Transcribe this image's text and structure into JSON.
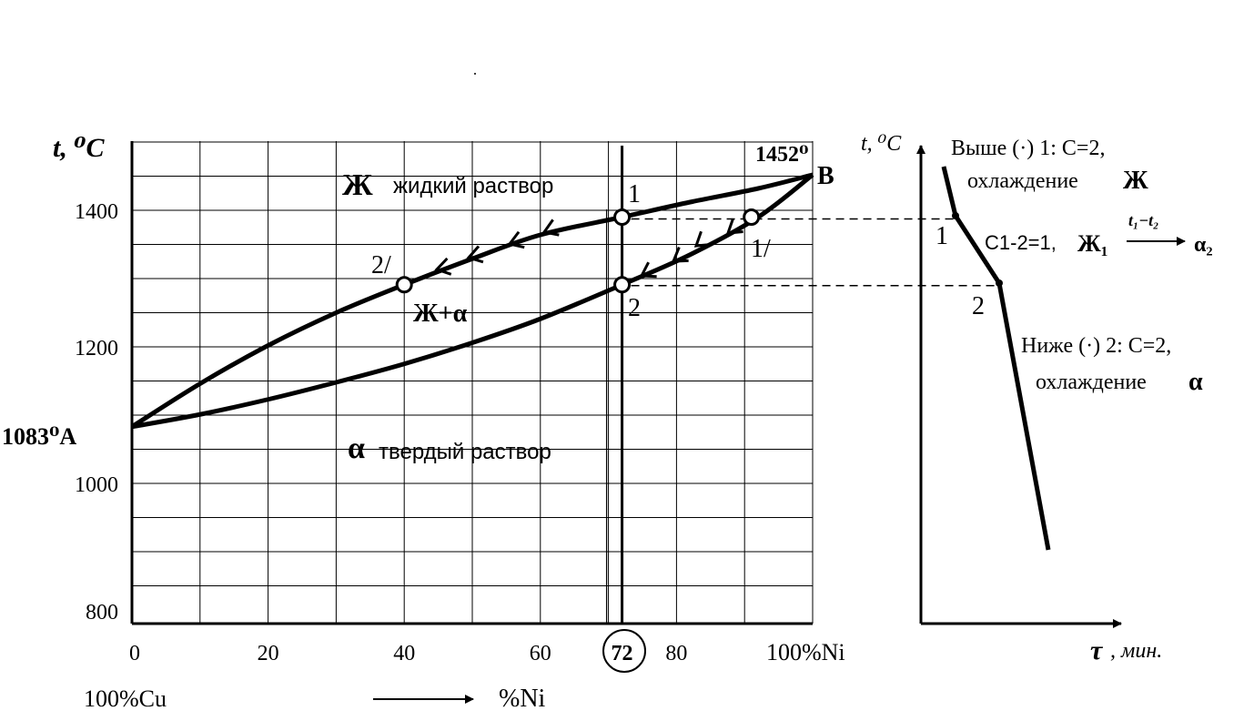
{
  "chart_data": [
    {
      "type": "line",
      "xlabel_left": "100%Cu",
      "xlabel_right": "100%Ni",
      "xlabel_axis": "%Ni",
      "ylabel": "t, ⁰C",
      "xlim": [
        0,
        100
      ],
      "ylim": [
        800,
        1500
      ],
      "x_ticks": [
        "0",
        "20",
        "40",
        "60",
        "72",
        "80"
      ],
      "y_ticks": [
        "800",
        "1000",
        "1200",
        "1400"
      ],
      "grid": true,
      "point_A": {
        "label": "1083⁰A",
        "x": 0,
        "y": 1083
      },
      "point_B": {
        "label": "1452⁰",
        "letter": "B",
        "x": 100,
        "y": 1452
      },
      "series": [
        {
          "x": [
            0,
            10,
            20,
            30,
            40,
            50,
            60,
            72,
            82,
            92,
            100
          ],
          "y": [
            1083,
            1146,
            1202,
            1250,
            1291,
            1329,
            1364,
            1390,
            1412,
            1432,
            1452
          ]
        },
        {
          "x": [
            0,
            10,
            20,
            30,
            40,
            50,
            60,
            72,
            82,
            92,
            100
          ],
          "y": [
            1083,
            1101,
            1123,
            1148,
            1175,
            1206,
            1241,
            1291,
            1335,
            1390,
            1452
          ]
        }
      ],
      "composition_line_x": 72,
      "points": [
        {
          "label": "1",
          "x": 72,
          "y": 1390
        },
        {
          "label": "1/",
          "x": 91,
          "y": 1390
        },
        {
          "label": "2/",
          "x": 40,
          "y": 1291
        },
        {
          "label": "2",
          "x": 72,
          "y": 1291
        }
      ],
      "regions": {
        "liquid_symbol": "Ж",
        "liquid_text": "жидкий раствор",
        "two_phase": "Ж+α",
        "solid_symbol": "α",
        "solid_text": "твердый раствор"
      }
    },
    {
      "type": "line",
      "ylabel": "t, ⁰C",
      "xlabel_symbol": "τ",
      "xlabel_unit": ", мин.",
      "series": [
        {
          "x": [
            0,
            1,
            2,
            3
          ],
          "y": [
            1480,
            1390,
            1291,
            900
          ]
        }
      ],
      "points": [
        {
          "label": "1"
        },
        {
          "label": "2"
        }
      ],
      "annotations": {
        "above_line1": "Выше (·) 1: С=2,",
        "above_line2": "охлаждение",
        "above_symbol": "Ж",
        "between_text": "C1-2=1,",
        "between_from": "Ж₁",
        "between_over": "t₁−t₂",
        "between_to": "α₂",
        "below_line1": "Ниже (·) 2: С=2,",
        "below_line2": "охлаждение",
        "below_symbol": "α"
      }
    }
  ]
}
